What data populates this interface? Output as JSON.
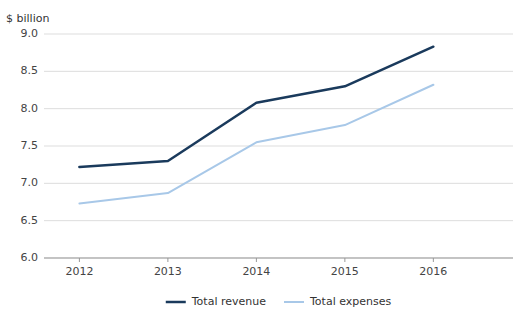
{
  "chart_data": {
    "type": "line",
    "y_label": "$ billion",
    "x": [
      2012,
      2013,
      2014,
      2015,
      2016
    ],
    "series": [
      {
        "name": "Total revenue",
        "color": "#1a3a5c",
        "values": [
          7.22,
          7.3,
          8.08,
          8.3,
          8.83
        ]
      },
      {
        "name": "Total expenses",
        "color": "#a8c8e8",
        "values": [
          6.73,
          6.87,
          7.55,
          7.78,
          8.32
        ]
      }
    ],
    "xlim": [
      2011.6,
      2016.9
    ],
    "xticks": [
      2012,
      2013,
      2014,
      2015,
      2016
    ],
    "ylim": [
      6.0,
      9.0
    ],
    "yticks": [
      {
        "value": 6.0,
        "label": "6.0"
      },
      6.5,
      {
        "value": 7.0,
        "label": "7.0"
      },
      7.5,
      {
        "value": 8.0,
        "label": "8.0"
      },
      8.5,
      {
        "value": 9.0,
        "label": "9.0"
      }
    ],
    "grid": true,
    "legend": "bottom"
  }
}
